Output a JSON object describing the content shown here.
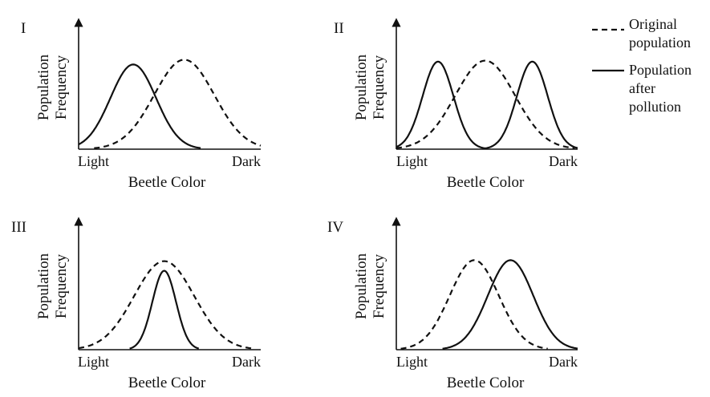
{
  "figure": {
    "y_axis_label": [
      "Population",
      "Frequency"
    ],
    "x_axis_label": "Beetle Color",
    "x_min_label": "Light",
    "x_max_label": "Dark",
    "legend": {
      "original": [
        "Original",
        "population"
      ],
      "after": [
        "Population",
        "after",
        "pollution"
      ]
    },
    "panels": [
      {
        "id": "I",
        "original": [
          {
            "center": 0.58,
            "width": 0.165,
            "height": 0.93
          }
        ],
        "after": [
          {
            "center": 0.3,
            "width": 0.125,
            "height": 0.88
          }
        ]
      },
      {
        "id": "II",
        "original": [
          {
            "center": 0.49,
            "width": 0.165,
            "height": 0.92
          }
        ],
        "after": [
          {
            "center": 0.23,
            "width": 0.085,
            "height": 0.91
          },
          {
            "center": 0.75,
            "width": 0.085,
            "height": 0.91
          }
        ]
      },
      {
        "id": "III",
        "original": [
          {
            "center": 0.47,
            "width": 0.165,
            "height": 0.92
          }
        ],
        "after": [
          {
            "center": 0.47,
            "width": 0.065,
            "height": 0.82
          }
        ]
      },
      {
        "id": "IV",
        "original": [
          {
            "center": 0.43,
            "width": 0.135,
            "height": 0.93
          }
        ],
        "after": [
          {
            "center": 0.63,
            "width": 0.125,
            "height": 0.93
          }
        ]
      }
    ]
  }
}
